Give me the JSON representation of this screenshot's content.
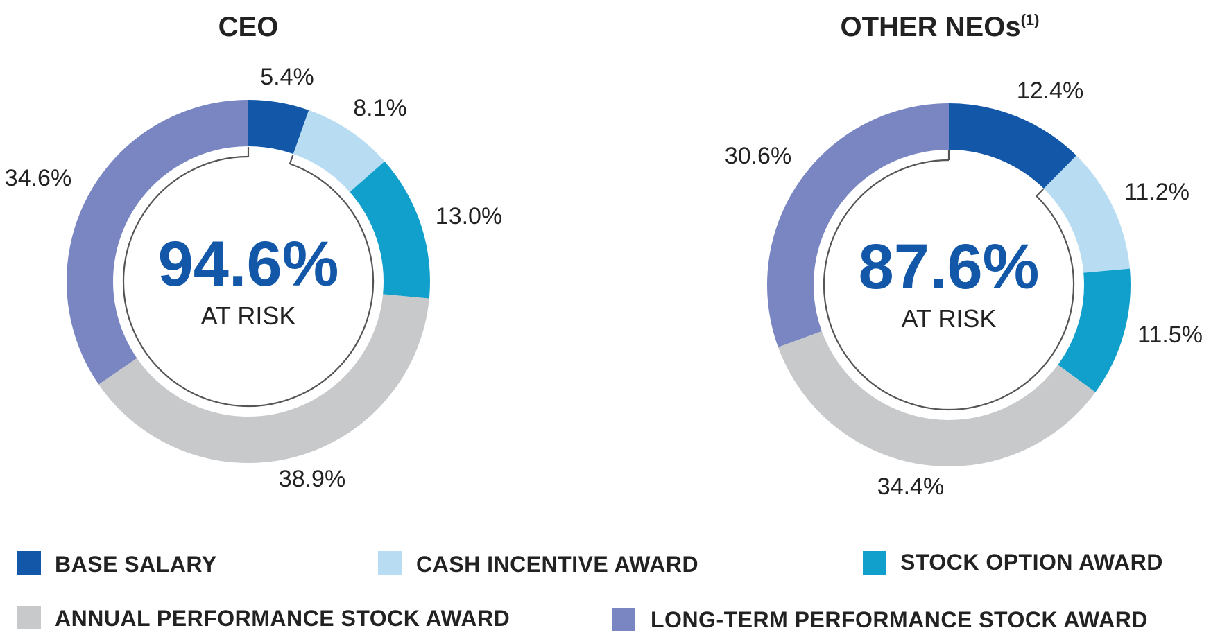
{
  "colors": {
    "base_salary": "#1257a8",
    "cash_incentive": "#b8dcf2",
    "stock_option": "#11a0cc",
    "annual_performance": "#c8c9cb",
    "long_term_performance": "#7a86c2",
    "center_value": "#1257a8",
    "bracket": "#555555"
  },
  "legend": {
    "base_salary": "BASE SALARY",
    "cash_incentive": "CASH INCENTIVE AWARD",
    "stock_option": "STOCK OPTION AWARD",
    "annual_performance": "ANNUAL PERFORMANCE STOCK AWARD",
    "long_term_performance": "LONG-TERM PERFORMANCE STOCK AWARD"
  },
  "chart_data": [
    {
      "type": "pie",
      "variant": "donut",
      "title": "CEO",
      "title_superscript": "",
      "center_value": "94.6%",
      "center_label": "AT RISK",
      "categories": [
        "BASE SALARY",
        "CASH INCENTIVE AWARD",
        "STOCK OPTION AWARD",
        "ANNUAL PERFORMANCE STOCK AWARD",
        "LONG-TERM PERFORMANCE STOCK AWARD"
      ],
      "values": [
        5.4,
        8.1,
        13.0,
        38.9,
        34.6
      ],
      "labels": [
        "5.4%",
        "8.1%",
        "13.0%",
        "38.9%",
        "34.6%"
      ],
      "at_risk_value": 94.6
    },
    {
      "type": "pie",
      "variant": "donut",
      "title": "OTHER NEOs",
      "title_superscript": "(1)",
      "center_value": "87.6%",
      "center_label": "AT RISK",
      "categories": [
        "BASE SALARY",
        "CASH INCENTIVE AWARD",
        "STOCK OPTION AWARD",
        "ANNUAL PERFORMANCE STOCK AWARD",
        "LONG-TERM PERFORMANCE STOCK AWARD"
      ],
      "values": [
        12.4,
        11.2,
        11.5,
        34.4,
        30.6
      ],
      "labels": [
        "12.4%",
        "11.2%",
        "11.5%",
        "34.4%",
        "30.6%"
      ],
      "at_risk_value": 87.6
    }
  ]
}
